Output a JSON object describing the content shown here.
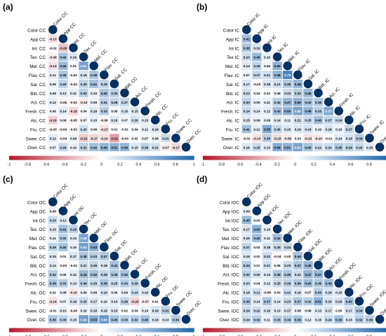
{
  "figure": {
    "colorbar_ticks": [
      "-1",
      "-0.8",
      "-0.6",
      "-0.4",
      "-0.2",
      "0",
      "0.2",
      "0.4",
      "0.6",
      "0.8",
      "1"
    ],
    "colors": {
      "negative": "#b2182b",
      "neutral": "#ffffff",
      "positive": "#2166ac",
      "diagonal": "#053061",
      "text": "#000000"
    }
  },
  "chart_data": [
    {
      "type": "heatmap",
      "panel_label": "(a)",
      "labels": [
        "Color CC",
        "App CC",
        "Int. CC",
        "Tex. CC",
        "Mel. CC",
        "Flav. CC",
        "Sal. CC",
        "Bitt. CC",
        "Aci. CC",
        "Fresh. CC",
        "Alc. CC",
        "Fru. CC",
        "Swee. CC",
        "Over. CC"
      ],
      "lower_triangle": [
        [],
        [
          "-0.13"
        ],
        [
          "-0.02",
          "-0.26"
        ],
        [
          "-0.08",
          "0.40",
          "0.16"
        ],
        [
          "-0.13",
          "0.45",
          "0.01",
          "0.61"
        ],
        [
          "0.11",
          "0.36",
          "-0.02",
          "0.19",
          "0.38"
        ],
        [
          "0.09",
          "0.29",
          "-0.04",
          "0.29",
          "0.41",
          "0.29"
        ],
        [
          "0.08",
          "0.13",
          "0.11",
          "0.32",
          "0.10",
          "0.40",
          "0.30"
        ],
        [
          "0.12",
          "-0.06",
          "-0.03",
          "-0.10",
          "0.09",
          "0.31",
          "0.28",
          "0.27"
        ],
        [
          "0.06",
          "0.14",
          "-0.18",
          "0.04",
          "0.16",
          "0.33",
          "0.06",
          "0.15",
          "0.15"
        ],
        [
          "-0.19",
          "0.06",
          "-0.05",
          "0.07",
          "0.10",
          "-0.06",
          "0.16",
          "0.07",
          "0.20",
          "0.13"
        ],
        [
          "-0.03",
          "-0.04",
          "-0.03",
          "0.20",
          "0.06",
          "-0.13",
          "0.01",
          "-0.01",
          "0.04",
          "0.11",
          "0.16"
        ],
        [
          "0.12",
          "-0.04",
          "0.09",
          "-0.22",
          "-0.17",
          "-0.14",
          "-0.41",
          "-0.03",
          "0.02",
          "0.07",
          "0.08",
          "0.23"
        ],
        [
          "0.07",
          "0.26",
          "0.10",
          "0.31",
          "0.42",
          "0.49",
          "0.51",
          "0.48",
          "0.15",
          "0.30",
          "0.21",
          "-0.07",
          "-0.17"
        ]
      ]
    },
    {
      "type": "heatmap",
      "panel_label": "(b)",
      "labels": [
        "Color IC",
        "App IC",
        "Int IC",
        "Tex IC",
        "Mel. IC",
        "Flav. IC",
        "Sal. IC",
        "Bitt. IC",
        "Aci. IC",
        "Fresh. IC",
        "Alc. IC",
        "Fru. IC",
        "Swee. IC",
        "Over. IC"
      ],
      "lower_triangle": [
        [],
        [
          "0.42"
        ],
        [
          "0.38",
          "0.16"
        ],
        [
          "0.23",
          "0.45",
          "0.10"
        ],
        [
          "0.14",
          "0.29",
          "0.06",
          "0.50"
        ],
        [
          "0.07",
          "0.27",
          "0.21",
          "0.48",
          "0.79"
        ],
        [
          "0.17",
          "-0.03",
          "0.18",
          "0.21",
          "0.35",
          "0.48"
        ],
        [
          "0.23",
          "0.04",
          "0.02",
          "0.08",
          "0.23",
          "0.32",
          "0.46"
        ],
        [
          "0.30",
          "0.09",
          "0.11",
          "0.32",
          "0.47",
          "0.50",
          "0.40",
          "0.36"
        ],
        [
          "0.24",
          "0.14",
          "0.12",
          "0.43",
          "0.50",
          "0.60",
          "0.48",
          "0.33",
          "0.57"
        ],
        [
          "0.15",
          "0.09",
          "0.09",
          "0.14",
          "0.11",
          "0.21",
          "0.25",
          "0.40",
          "0.27",
          "0.24"
        ],
        [
          "0.41",
          "0.12",
          "0.55",
          "0.26",
          "0.15",
          "0.16",
          "0.19",
          "0.10",
          "0.18",
          "0.10",
          "0.27"
        ],
        [
          "-0.02",
          "-0.13",
          "0.30",
          "-0.15",
          "-0.09",
          "0.03",
          "-0.13",
          "-0.10",
          "-0.01",
          "0.14",
          "0.18",
          "0.34"
        ],
        [
          "0.16",
          "0.25",
          "0.13",
          "0.54",
          "0.51",
          "0.60",
          "0.40",
          "0.22",
          "0.23",
          "0.35",
          "0.29",
          "0.26",
          "0.15"
        ]
      ]
    },
    {
      "type": "heatmap",
      "panel_label": "(c)",
      "labels": [
        "Color OC",
        "App OC",
        "Int OC",
        "Tex. OC",
        "Mel. OC",
        "Flav. OC",
        "Sal. OC",
        "Bitt. OC",
        "Aci. OC",
        "Fresh. OC",
        "Alc. OC",
        "Fru. OC",
        "Swee. OC",
        "Over. OC"
      ],
      "lower_triangle": [
        [],
        [
          "0.06"
        ],
        [
          "0.23",
          "0.12"
        ],
        [
          "0.15",
          "0.41",
          "0.29"
        ],
        [
          "0.11",
          "0.32",
          "0.13",
          "0.59"
        ],
        [
          "0.29",
          "0.40",
          "0.10",
          "0.63",
          "0.53"
        ],
        [
          "0.15",
          "0.01",
          "0.17",
          "0.38",
          "0.33",
          "0.37"
        ],
        [
          "0.14",
          "-0.03",
          "-0.01",
          "0.21",
          "0.26",
          "0.18",
          "0.41"
        ],
        [
          "0.32",
          "0.06",
          "0.12",
          "0.44",
          "0.40",
          "0.28",
          "0.36",
          "0.40"
        ],
        [
          "0.38",
          "0.33",
          "0.13",
          "0.34",
          "0.25",
          "0.38",
          "0.25",
          "0.33",
          "0.29"
        ],
        [
          "0.02",
          "0.08",
          "-0.10",
          "0.09",
          "0.08",
          "0.16",
          "0.06",
          "0.09",
          "0.23",
          "0.16"
        ],
        [
          "-0.14",
          "0.07",
          "0.18",
          "0.25",
          "0.17",
          "0.10",
          "0.14",
          "0.28",
          "-0.20",
          "-0.07",
          "0.01"
        ],
        [
          "-0.01",
          "0.10",
          "-0.04",
          "0.10",
          "0.15",
          "0.16",
          "0.15",
          "0.02",
          "0.04",
          "0.10",
          "0.19",
          "0.31"
        ],
        [
          "0.35",
          "0.30",
          "0.15",
          "0.64",
          "0.53",
          "0.68",
          "0.40",
          "0.33",
          "0.32",
          "0.40",
          "0.16",
          "0.13",
          "0.34"
        ]
      ]
    },
    {
      "type": "heatmap",
      "panel_label": "(d)",
      "labels": [
        "Color IOC",
        "App IOC",
        "Int IOC",
        "Tex. IOC",
        "Mel. IOC",
        "Flav. IOC",
        "Sal. IOC",
        "Bitt. IOC",
        "Aci. IOC",
        "Fresh. IOC",
        "Alc. IOC",
        "Fru. IOC",
        "Swee. IOC",
        "Over. IOC"
      ],
      "lower_triangle": [
        [],
        [
          "0.09"
        ],
        [
          "0.45",
          "0.03"
        ],
        [
          "0.17",
          "0.50",
          "0.10"
        ],
        [
          "0.16",
          "0.42",
          "0.11",
          "0.41"
        ],
        [
          "0.27",
          "0.03",
          "0.18",
          "0.25",
          "0.24"
        ],
        [
          "0.16",
          "0.02",
          "0.22",
          "-0.04",
          "0.00",
          "0.40"
        ],
        [
          "0.34",
          "0.01",
          "0.21",
          "0.06",
          "0.23",
          "0.37",
          "0.46"
        ],
        [
          "0.30",
          "0.20",
          "0.14",
          "0.36",
          "0.36",
          "0.22",
          "0.47",
          "0.47"
        ],
        [
          "0.20",
          "0.04",
          "0.12",
          "0.25",
          "0.29",
          "0.36",
          "0.43",
          "0.36",
          "0.43"
        ],
        [
          "0.18",
          "0.21",
          "-0.06",
          "0.03",
          "0.22",
          "0.16",
          "0.07",
          "0.33",
          "0.18",
          "0.15"
        ],
        [
          "0.36",
          "0.14",
          "0.37",
          "0.14",
          "0.23",
          "0.37",
          "0.32",
          "0.51",
          "0.20",
          "0.20",
          "0.40"
        ],
        [
          "0.24",
          "0.22",
          "0.16",
          "0.13",
          "0.17",
          "0.08",
          "0.08",
          "0.13",
          "0.17",
          "0.00",
          "0.17",
          "0.34"
        ],
        [
          "0.24",
          "0.32",
          "0.11",
          "0.33",
          "0.34",
          "0.39",
          "0.12",
          "0.15",
          "0.24",
          "0.39",
          "0.15",
          "0.32",
          "0.30"
        ]
      ]
    }
  ]
}
